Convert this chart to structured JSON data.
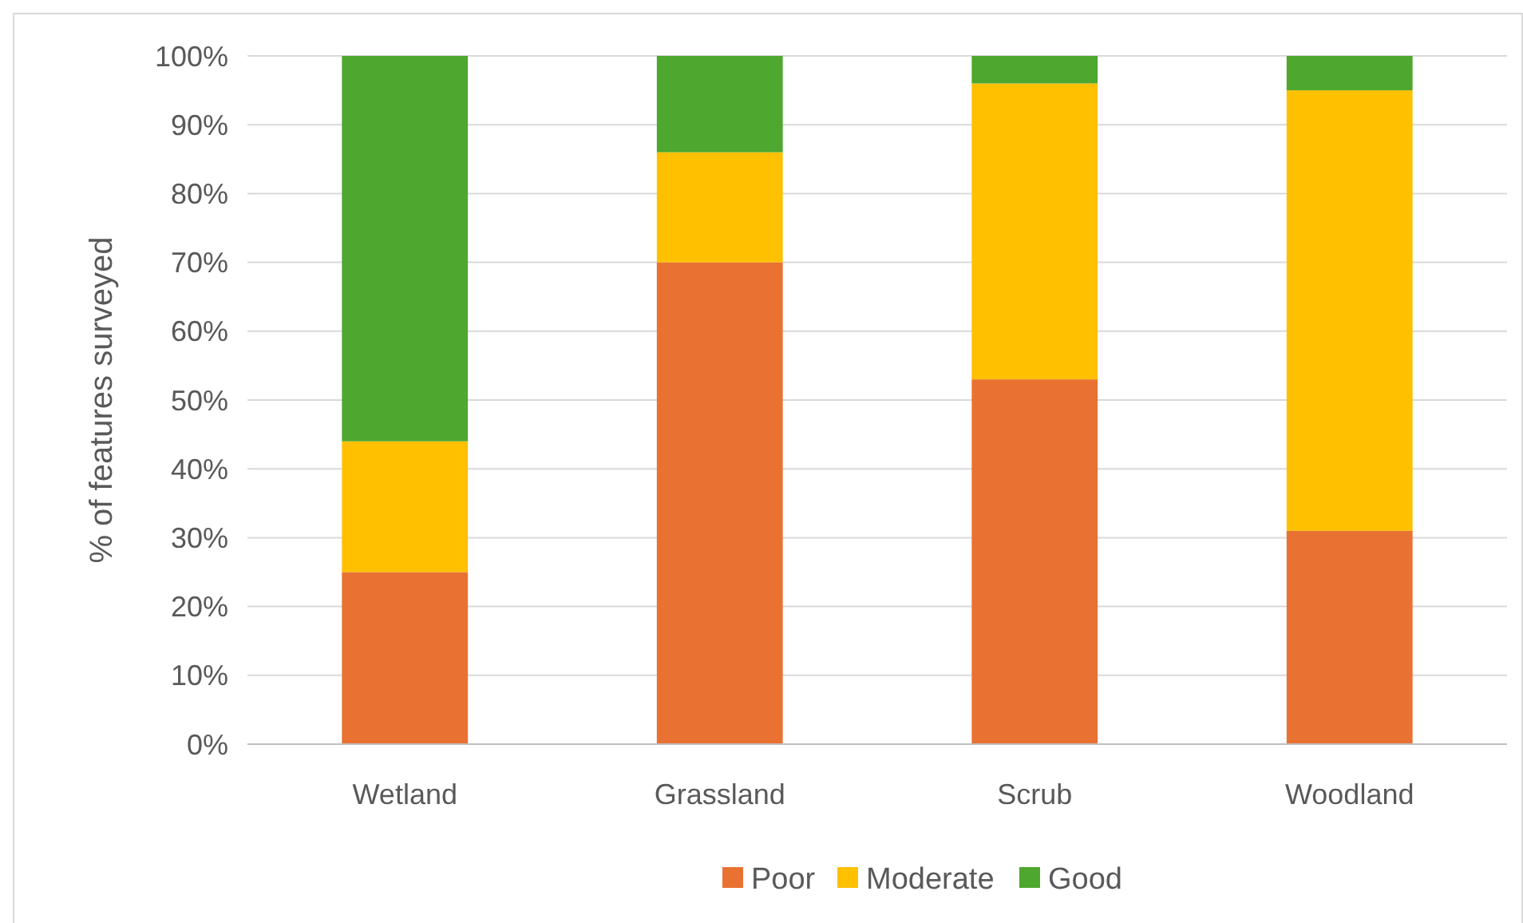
{
  "chart_data": {
    "type": "bar",
    "stacked": true,
    "ylabel": "% of features surveyed",
    "categories": [
      "Wetland",
      "Grassland",
      "Scrub",
      "Woodland"
    ],
    "series": [
      {
        "name": "Poor",
        "color": "#e97132",
        "values": [
          25,
          70,
          53,
          31
        ]
      },
      {
        "name": "Moderate",
        "color": "#ffc000",
        "values": [
          19,
          16,
          43,
          64
        ]
      },
      {
        "name": "Good",
        "color": "#4ea72e",
        "values": [
          56,
          14,
          4,
          5
        ]
      }
    ],
    "ylim": [
      0,
      100
    ],
    "yticks": [
      {
        "value": 0,
        "label": "0%"
      },
      {
        "value": 10,
        "label": "10%"
      },
      {
        "value": 20,
        "label": "20%"
      },
      {
        "value": 30,
        "label": "30%"
      },
      {
        "value": 40,
        "label": "40%"
      },
      {
        "value": 50,
        "label": "50%"
      },
      {
        "value": 60,
        "label": "60%"
      },
      {
        "value": 70,
        "label": "70%"
      },
      {
        "value": 80,
        "label": "80%"
      },
      {
        "value": 90,
        "label": "90%"
      },
      {
        "value": 100,
        "label": "100%"
      }
    ],
    "grid": "y",
    "legend": "bottom"
  }
}
